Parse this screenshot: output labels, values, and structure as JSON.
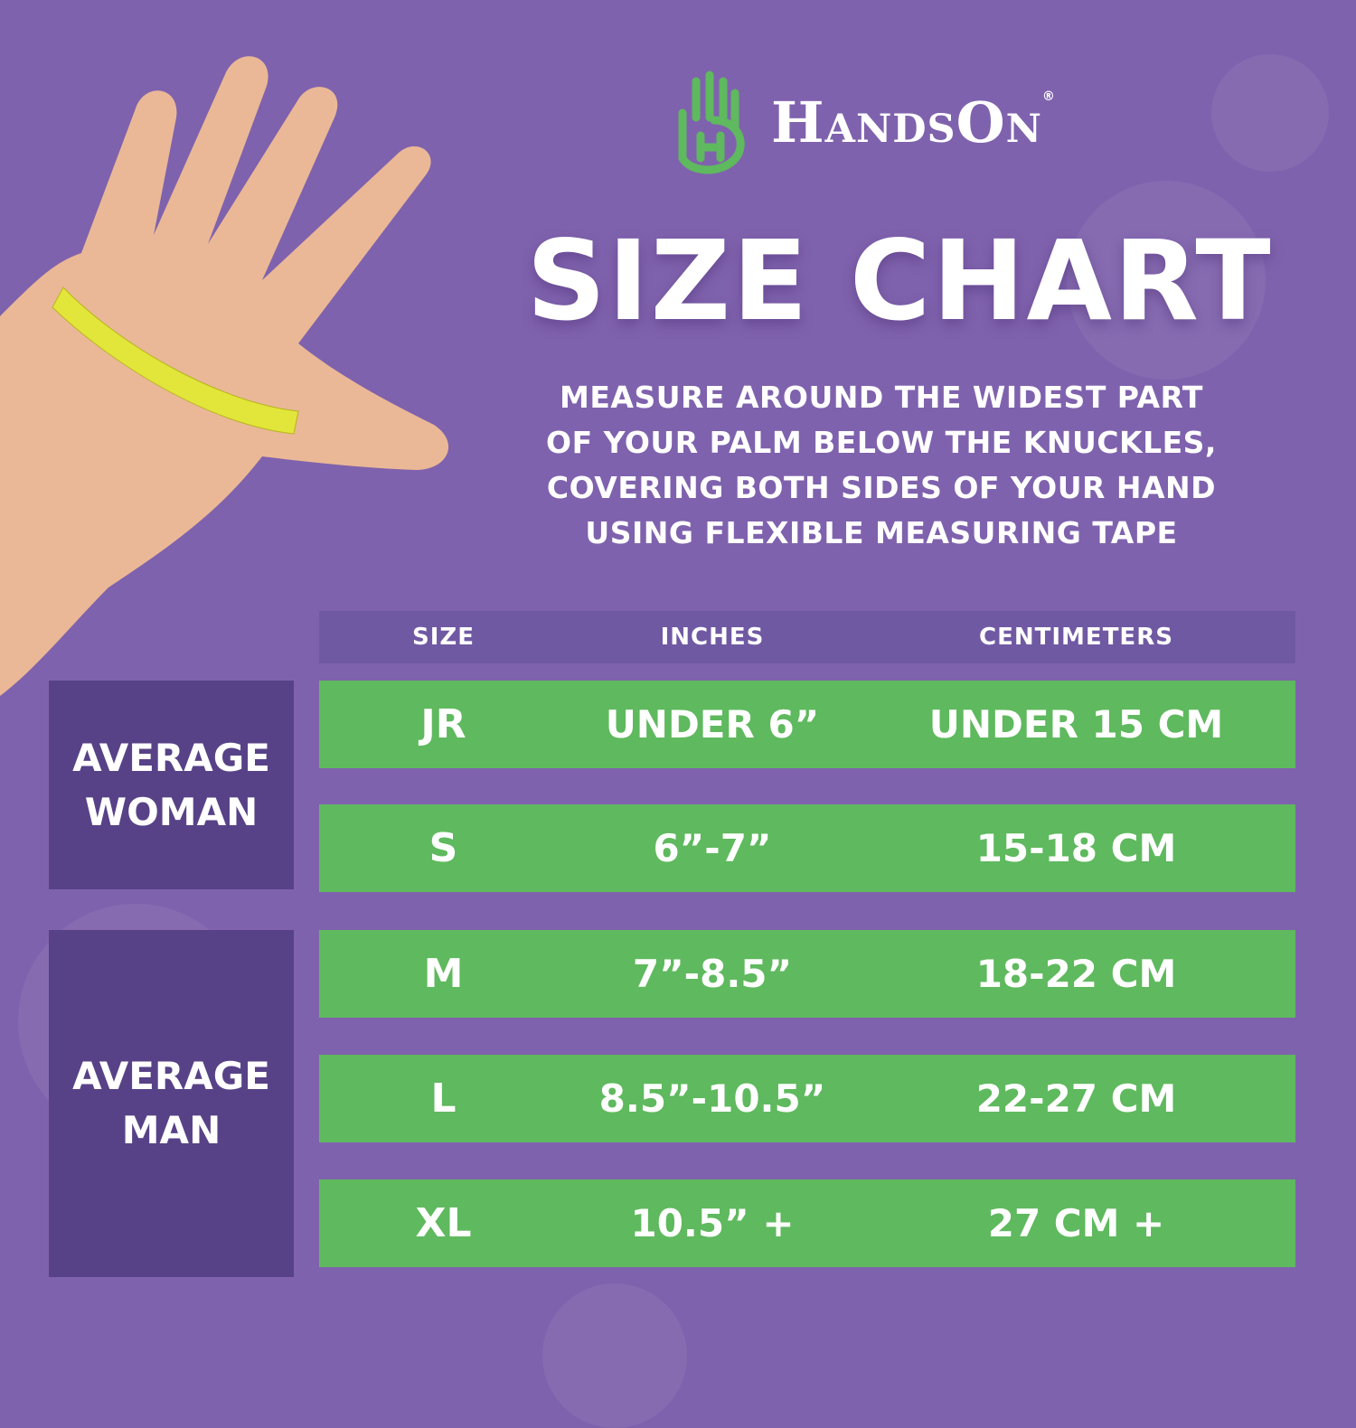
{
  "brand": {
    "name": "HandsOn",
    "registered": "®",
    "logo_color": "#5fb95e"
  },
  "title": "SIZE CHART",
  "instructions": [
    "MEASURE AROUND THE WIDEST PART",
    "OF YOUR PALM BELOW THE KNUCKLES,",
    "COVERING BOTH SIDES OF YOUR HAND",
    "USING FLEXIBLE MEASURING TAPE"
  ],
  "table": {
    "headers": [
      "SIZE",
      "INCHES",
      "CENTIMETERS"
    ],
    "rows": [
      {
        "size": "JR",
        "inches": "UNDER 6”",
        "cm": "UNDER 15 CM"
      },
      {
        "size": "S",
        "inches": "6”-7”",
        "cm": "15-18 CM"
      },
      {
        "size": "M",
        "inches": "7”-8.5”",
        "cm": "18-22 CM"
      },
      {
        "size": "L",
        "inches": "8.5”-10.5”",
        "cm": "22-27 CM"
      },
      {
        "size": "XL",
        "inches": "10.5” +",
        "cm": "27 CM +"
      }
    ],
    "groups": [
      {
        "label_1": "AVERAGE",
        "label_2": "WOMAN"
      },
      {
        "label_1": "AVERAGE",
        "label_2": "MAN"
      }
    ]
  },
  "colors": {
    "background": "#7f62ad",
    "group": "#574287",
    "header": "#7059a3",
    "row": "#5fb95e",
    "tape": "#e3e63a"
  }
}
